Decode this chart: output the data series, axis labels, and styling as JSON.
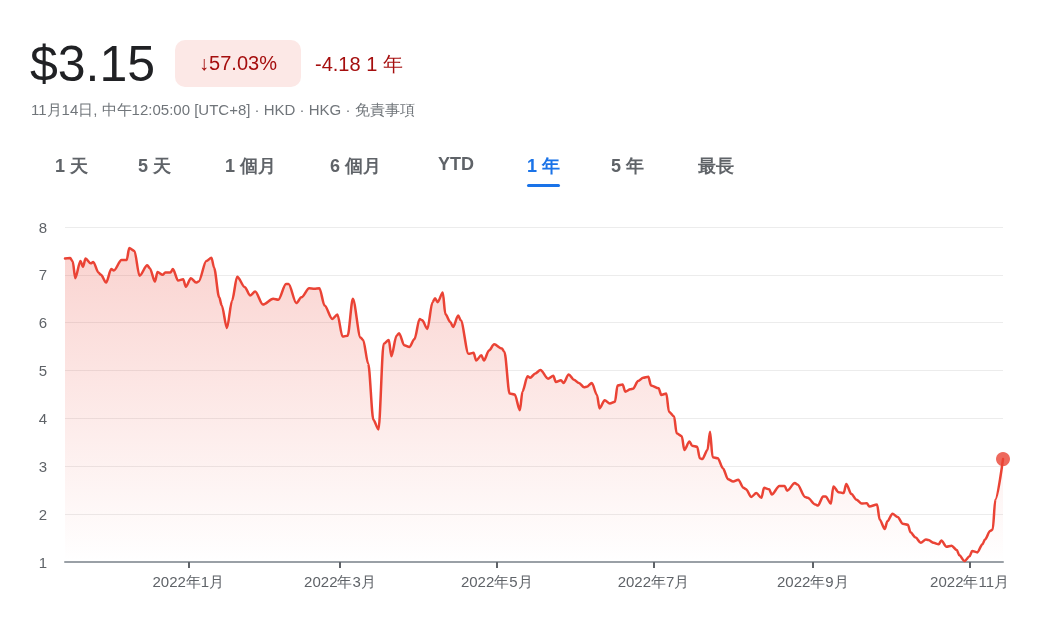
{
  "chart_data": {
    "type": "area",
    "title": "$3.15",
    "subtitle": "11月14日, 中午12:05:00 [UTC+8] · HKD · HKG · 免責事項",
    "annotations": [
      "↓57.03%",
      "-4.18 1 年",
      "1 天",
      "5 天",
      "1 個月",
      "6 個月",
      "YTD",
      "1 年",
      "5 年",
      "最長"
    ],
    "xlim": [
      "2021-11-14",
      "2022-11-14"
    ],
    "xticks": [
      {
        "value": "2022-01-01",
        "label": "2022年1月"
      },
      {
        "value": "2022-03-01",
        "label": "2022年3月"
      },
      {
        "value": "2022-05-01",
        "label": "2022年5月"
      },
      {
        "value": "2022-07-01",
        "label": "2022年7月"
      },
      {
        "value": "2022-09-01",
        "label": "2022年9月"
      },
      {
        "value": "2022-11-01",
        "label": "2022年11月"
      }
    ],
    "ylim": [
      1,
      8
    ],
    "yticks": [
      1,
      2,
      3,
      4,
      5,
      6,
      7,
      8
    ],
    "grid": "y",
    "marker": "none",
    "line_style": "solid",
    "series": [
      {
        "color": "#ea4335",
        "x": [
          "2021-11-14",
          "2021-11-16",
          "2021-11-17",
          "2021-11-18",
          "2021-11-20",
          "2021-11-21",
          "2021-11-22",
          "2021-11-24",
          "2021-11-25",
          "2021-11-27",
          "2021-11-28",
          "2021-11-30",
          "2021-12-02",
          "2021-12-03",
          "2021-12-06",
          "2021-12-08",
          "2021-12-09",
          "2021-12-11",
          "2021-12-13",
          "2021-12-16",
          "2021-12-17",
          "2021-12-19",
          "2021-12-20",
          "2021-12-22",
          "2021-12-23",
          "2021-12-25",
          "2021-12-26",
          "2021-12-28",
          "2021-12-30",
          "2021-12-31",
          "2022-01-02",
          "2022-01-04",
          "2022-01-05",
          "2022-01-08",
          "2022-01-10",
          "2022-01-11",
          "2022-01-13",
          "2022-01-14",
          "2022-01-16",
          "2022-01-18",
          "2022-01-20",
          "2022-01-23",
          "2022-01-25",
          "2022-01-27",
          "2022-01-30",
          "2022-02-03",
          "2022-02-05",
          "2022-02-08",
          "2022-02-09",
          "2022-02-12",
          "2022-02-14",
          "2022-02-17",
          "2022-02-19",
          "2022-02-21",
          "2022-02-23",
          "2022-02-26",
          "2022-02-28",
          "2022-03-02",
          "2022-03-04",
          "2022-03-06",
          "2022-03-09",
          "2022-03-10",
          "2022-03-12",
          "2022-03-14",
          "2022-03-16",
          "2022-03-18",
          "2022-03-20",
          "2022-03-21",
          "2022-03-23",
          "2022-03-24",
          "2022-03-26",
          "2022-03-28",
          "2022-03-30",
          "2022-04-01",
          "2022-04-02",
          "2022-04-04",
          "2022-04-06",
          "2022-04-07",
          "2022-04-08",
          "2022-04-10",
          "2022-04-11",
          "2022-04-13",
          "2022-04-14",
          "2022-04-16",
          "2022-04-17",
          "2022-04-20",
          "2022-04-22",
          "2022-04-23",
          "2022-04-25",
          "2022-04-26",
          "2022-04-28",
          "2022-04-30",
          "2022-05-03",
          "2022-05-04",
          "2022-05-06",
          "2022-05-08",
          "2022-05-10",
          "2022-05-11",
          "2022-05-13",
          "2022-05-14",
          "2022-05-16",
          "2022-05-18",
          "2022-05-21",
          "2022-05-23",
          "2022-05-24",
          "2022-05-26",
          "2022-05-27",
          "2022-05-29",
          "2022-05-31",
          "2022-06-02",
          "2022-06-04",
          "2022-06-05",
          "2022-06-07",
          "2022-06-09",
          "2022-06-10",
          "2022-06-12",
          "2022-06-14",
          "2022-06-16",
          "2022-06-17",
          "2022-06-19",
          "2022-06-20",
          "2022-06-22",
          "2022-06-23",
          "2022-06-25",
          "2022-06-27",
          "2022-06-29",
          "2022-06-30",
          "2022-07-03",
          "2022-07-04",
          "2022-07-06",
          "2022-07-07",
          "2022-07-09",
          "2022-07-10",
          "2022-07-12",
          "2022-07-13",
          "2022-07-15",
          "2022-07-16",
          "2022-07-18",
          "2022-07-19",
          "2022-07-20",
          "2022-07-22",
          "2022-07-23",
          "2022-07-24",
          "2022-07-26",
          "2022-07-28",
          "2022-07-30",
          "2022-08-01",
          "2022-08-03",
          "2022-08-05",
          "2022-08-06",
          "2022-08-08",
          "2022-08-10",
          "2022-08-12",
          "2022-08-13",
          "2022-08-15",
          "2022-08-16",
          "2022-08-19",
          "2022-08-21",
          "2022-08-22",
          "2022-08-25",
          "2022-08-26",
          "2022-08-29",
          "2022-08-30",
          "2022-09-02",
          "2022-09-03",
          "2022-09-05",
          "2022-09-06",
          "2022-09-08",
          "2022-09-09",
          "2022-09-11",
          "2022-09-13",
          "2022-09-14",
          "2022-09-16",
          "2022-09-18",
          "2022-09-20",
          "2022-09-22",
          "2022-09-23",
          "2022-09-26",
          "2022-09-27",
          "2022-09-29",
          "2022-09-30",
          "2022-10-02",
          "2022-10-04",
          "2022-10-06",
          "2022-10-08",
          "2022-10-09",
          "2022-10-11",
          "2022-10-13",
          "2022-10-15",
          "2022-10-16",
          "2022-10-18",
          "2022-10-20",
          "2022-10-21",
          "2022-10-23",
          "2022-10-25",
          "2022-10-27",
          "2022-10-28",
          "2022-10-30",
          "2022-11-01",
          "2022-11-02",
          "2022-11-04",
          "2022-11-06",
          "2022-11-07",
          "2022-11-09",
          "2022-11-10",
          "2022-11-11",
          "2022-11-14"
        ],
        "values": [
          7.34,
          7.35,
          7.28,
          6.93,
          7.29,
          7.17,
          7.34,
          7.24,
          7.27,
          7.05,
          7.0,
          6.84,
          7.12,
          7.09,
          7.31,
          7.31,
          7.56,
          7.5,
          6.98,
          7.2,
          7.14,
          6.86,
          7.06,
          7.0,
          7.05,
          7.05,
          7.12,
          6.88,
          6.91,
          6.75,
          6.93,
          6.84,
          6.86,
          7.29,
          7.36,
          7.15,
          6.53,
          6.36,
          5.89,
          6.46,
          6.96,
          6.74,
          6.57,
          6.65,
          6.38,
          6.5,
          6.48,
          6.81,
          6.81,
          6.41,
          6.53,
          6.72,
          6.71,
          6.72,
          6.36,
          6.08,
          6.17,
          5.71,
          5.73,
          6.5,
          5.69,
          5.64,
          5.14,
          3.97,
          3.77,
          5.56,
          5.64,
          5.3,
          5.73,
          5.78,
          5.53,
          5.49,
          5.66,
          6.08,
          6.05,
          5.87,
          6.43,
          6.51,
          6.43,
          6.63,
          6.18,
          6.01,
          5.91,
          6.15,
          6.05,
          5.35,
          5.37,
          5.21,
          5.32,
          5.21,
          5.42,
          5.55,
          5.46,
          5.39,
          4.52,
          4.5,
          4.17,
          4.56,
          4.88,
          4.85,
          4.94,
          5.01,
          4.83,
          4.89,
          4.76,
          4.8,
          4.74,
          4.92,
          4.81,
          4.74,
          4.65,
          4.66,
          4.74,
          4.49,
          4.21,
          4.38,
          4.31,
          4.35,
          4.69,
          4.71,
          4.56,
          4.61,
          4.62,
          4.78,
          4.85,
          4.87,
          4.69,
          4.63,
          4.49,
          4.52,
          4.14,
          4.04,
          3.69,
          3.63,
          3.34,
          3.52,
          3.43,
          3.41,
          3.17,
          3.15,
          3.34,
          3.72,
          3.19,
          3.17,
          2.96,
          2.73,
          2.68,
          2.72,
          2.55,
          2.52,
          2.36,
          2.44,
          2.34,
          2.55,
          2.52,
          2.41,
          2.59,
          2.59,
          2.49,
          2.65,
          2.62,
          2.36,
          2.34,
          2.2,
          2.18,
          2.37,
          2.37,
          2.22,
          2.58,
          2.46,
          2.44,
          2.63,
          2.42,
          2.3,
          2.22,
          2.23,
          2.16,
          2.2,
          1.89,
          1.69,
          1.85,
          2.01,
          1.94,
          1.8,
          1.78,
          1.62,
          1.51,
          1.4,
          1.47,
          1.46,
          1.4,
          1.37,
          1.45,
          1.32,
          1.34,
          1.25,
          1.14,
          1.02,
          1.12,
          1.23,
          1.2,
          1.37,
          1.47,
          1.65,
          1.68,
          2.3,
          3.15
        ]
      },
      {
        "type": "scatter",
        "marker": "circle",
        "color": "#ea4335",
        "x": [
          "2022-11-14"
        ],
        "values": [
          3.15
        ]
      }
    ]
  }
}
